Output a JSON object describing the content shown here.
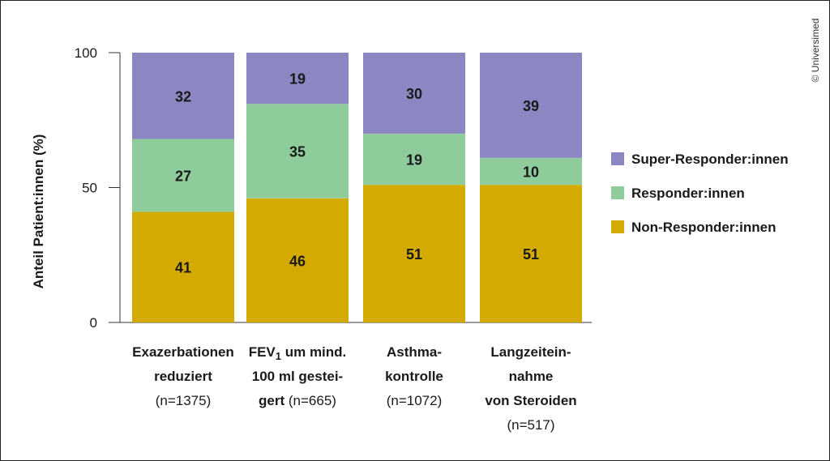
{
  "copyright": "© Universimed",
  "chart_data": {
    "type": "bar",
    "stacked": true,
    "ylabel": "Anteil Patient:innen (%)",
    "ylim": [
      0,
      100
    ],
    "yticks": [
      0,
      50,
      100
    ],
    "grid": false,
    "legend_position": "right",
    "categories": [
      {
        "lines": [
          [
            "Exazerbationen"
          ],
          [
            "reduziert"
          ],
          [
            {
              "t": "(n=1375)",
              "n": true
            }
          ]
        ]
      },
      {
        "lines": [
          [
            "FEV",
            {
              "t": "1",
              "sub": true
            },
            " um mind."
          ],
          [
            "100 ml gestei-"
          ],
          [
            "gert ",
            {
              "t": "(n=665)",
              "n": true
            }
          ]
        ]
      },
      {
        "lines": [
          [
            "Asthma-"
          ],
          [
            "kontrolle"
          ],
          [
            {
              "t": "(n=1072)",
              "n": true
            }
          ]
        ]
      },
      {
        "lines": [
          [
            "Langzeitein-"
          ],
          [
            "nahme"
          ],
          [
            "von Steroiden"
          ],
          [
            {
              "t": "(n=517)",
              "n": true
            }
          ]
        ]
      }
    ],
    "series": [
      {
        "name": "Non-Responder:innen",
        "color": "#d4aa00",
        "values": [
          41,
          46,
          51,
          51
        ]
      },
      {
        "name": "Responder:innen",
        "color": "#8fcc9b",
        "values": [
          27,
          35,
          19,
          10
        ]
      },
      {
        "name": "Super-Responder:innen",
        "color": "#8c86c2",
        "values": [
          32,
          19,
          30,
          39
        ]
      }
    ]
  }
}
